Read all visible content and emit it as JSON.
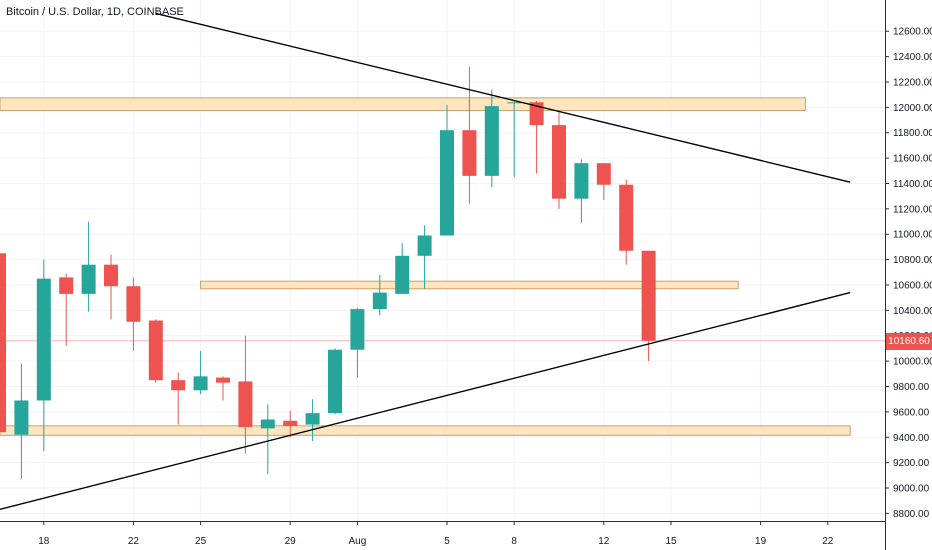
{
  "title": "Bitcoin / U.S. Dollar, 1D, COINBASE",
  "last_price_label": "10160.60",
  "colors": {
    "up": "#26a69a",
    "down": "#ef5350",
    "zone_fill": "#fde5c0",
    "zone_stroke": "#c9a36a",
    "trendline": "#000000",
    "last_price_line": "#f5b7b7"
  },
  "chart_data": {
    "type": "candlestick",
    "title": "Bitcoin / U.S. Dollar, 1D, COINBASE",
    "x_ticks": [
      "18",
      "22",
      "25",
      "29",
      "Aug",
      "5",
      "8",
      "12",
      "15",
      "19",
      "22"
    ],
    "y_ticks": [
      "12600.00",
      "12400.00",
      "12200.00",
      "12000.00",
      "11800.00",
      "11600.00",
      "11400.00",
      "11200.00",
      "11000.00",
      "10800.00",
      "10600.00",
      "10400.00",
      "10200.00",
      "10000.00",
      "9800.00",
      "9600.00",
      "9400.00",
      "9200.00",
      "9000.00",
      "8800.00"
    ],
    "ylim": [
      8740,
      12720
    ],
    "last_price": 10160.6,
    "candles": [
      {
        "date": "Jul 16",
        "open": 10850,
        "high": 10900,
        "low": 9050,
        "close": 9440
      },
      {
        "date": "Jul 17",
        "open": 9420,
        "high": 9980,
        "low": 9070,
        "close": 9690
      },
      {
        "date": "Jul 18",
        "open": 9690,
        "high": 10800,
        "low": 9290,
        "close": 10650
      },
      {
        "date": "Jul 19",
        "open": 10660,
        "high": 10690,
        "low": 10120,
        "close": 10530
      },
      {
        "date": "Jul 20",
        "open": 10530,
        "high": 11100,
        "low": 10390,
        "close": 10760
      },
      {
        "date": "Jul 21",
        "open": 10760,
        "high": 10840,
        "low": 10330,
        "close": 10590
      },
      {
        "date": "Jul 22",
        "open": 10590,
        "high": 10660,
        "low": 10080,
        "close": 10310
      },
      {
        "date": "Jul 23",
        "open": 10320,
        "high": 10330,
        "low": 9830,
        "close": 9850
      },
      {
        "date": "Jul 24",
        "open": 9850,
        "high": 9910,
        "low": 9500,
        "close": 9770
      },
      {
        "date": "Jul 25",
        "open": 9770,
        "high": 10080,
        "low": 9740,
        "close": 9880
      },
      {
        "date": "Jul 26",
        "open": 9870,
        "high": 9880,
        "low": 9690,
        "close": 9830
      },
      {
        "date": "Jul 27",
        "open": 9840,
        "high": 10200,
        "low": 9270,
        "close": 9480
      },
      {
        "date": "Jul 28",
        "open": 9470,
        "high": 9660,
        "low": 9110,
        "close": 9540
      },
      {
        "date": "Jul 29",
        "open": 9530,
        "high": 9610,
        "low": 9400,
        "close": 9490
      },
      {
        "date": "Jul 30",
        "open": 9500,
        "high": 9700,
        "low": 9370,
        "close": 9590
      },
      {
        "date": "Jul 31",
        "open": 9590,
        "high": 10100,
        "low": 9580,
        "close": 10090
      },
      {
        "date": "Aug 1",
        "open": 10090,
        "high": 10420,
        "low": 9870,
        "close": 10410
      },
      {
        "date": "Aug 2",
        "open": 10410,
        "high": 10680,
        "low": 10360,
        "close": 10540
      },
      {
        "date": "Aug 3",
        "open": 10530,
        "high": 10930,
        "low": 10540,
        "close": 10830
      },
      {
        "date": "Aug 4",
        "open": 10830,
        "high": 11070,
        "low": 10570,
        "close": 10990
      },
      {
        "date": "Aug 5",
        "open": 10990,
        "high": 12020,
        "low": 10990,
        "close": 11820
      },
      {
        "date": "Aug 6",
        "open": 11820,
        "high": 12320,
        "low": 11240,
        "close": 11460
      },
      {
        "date": "Aug 7",
        "open": 11460,
        "high": 12140,
        "low": 11370,
        "close": 12010
      },
      {
        "date": "Aug 8",
        "open": 12040,
        "high": 12050,
        "low": 11450,
        "close": 12040
      },
      {
        "date": "Aug 9",
        "open": 12040,
        "high": 12050,
        "low": 11480,
        "close": 11860
      },
      {
        "date": "Aug 10",
        "open": 11860,
        "high": 11960,
        "low": 11200,
        "close": 11280
      },
      {
        "date": "Aug 11",
        "open": 11280,
        "high": 11590,
        "low": 11090,
        "close": 11560
      },
      {
        "date": "Aug 12",
        "open": 11560,
        "high": 11560,
        "low": 11270,
        "close": 11390
      },
      {
        "date": "Aug 13",
        "open": 11390,
        "high": 11430,
        "low": 10760,
        "close": 10870
      },
      {
        "date": "Aug 14",
        "open": 10870,
        "high": 10870,
        "low": 10000,
        "close": 10160.6
      }
    ],
    "zones": [
      {
        "low": 11975,
        "high": 12075,
        "from": "Jul 16",
        "to": "Aug 21"
      },
      {
        "low": 10570,
        "high": 10630,
        "from": "Jul 25",
        "to": "Aug 18"
      },
      {
        "low": 9415,
        "high": 9490,
        "from": "Jul 16",
        "to": "Aug 23"
      }
    ],
    "trendlines": [
      {
        "from": {
          "date": "Jul 23",
          "price": 12740
        },
        "to": {
          "date": "Aug 23",
          "price": 11410
        }
      },
      {
        "from": {
          "date": "Jul 16",
          "price": 8830
        },
        "to": {
          "date": "Aug 23",
          "price": 10540
        }
      }
    ],
    "grid": true,
    "legend": "none"
  }
}
